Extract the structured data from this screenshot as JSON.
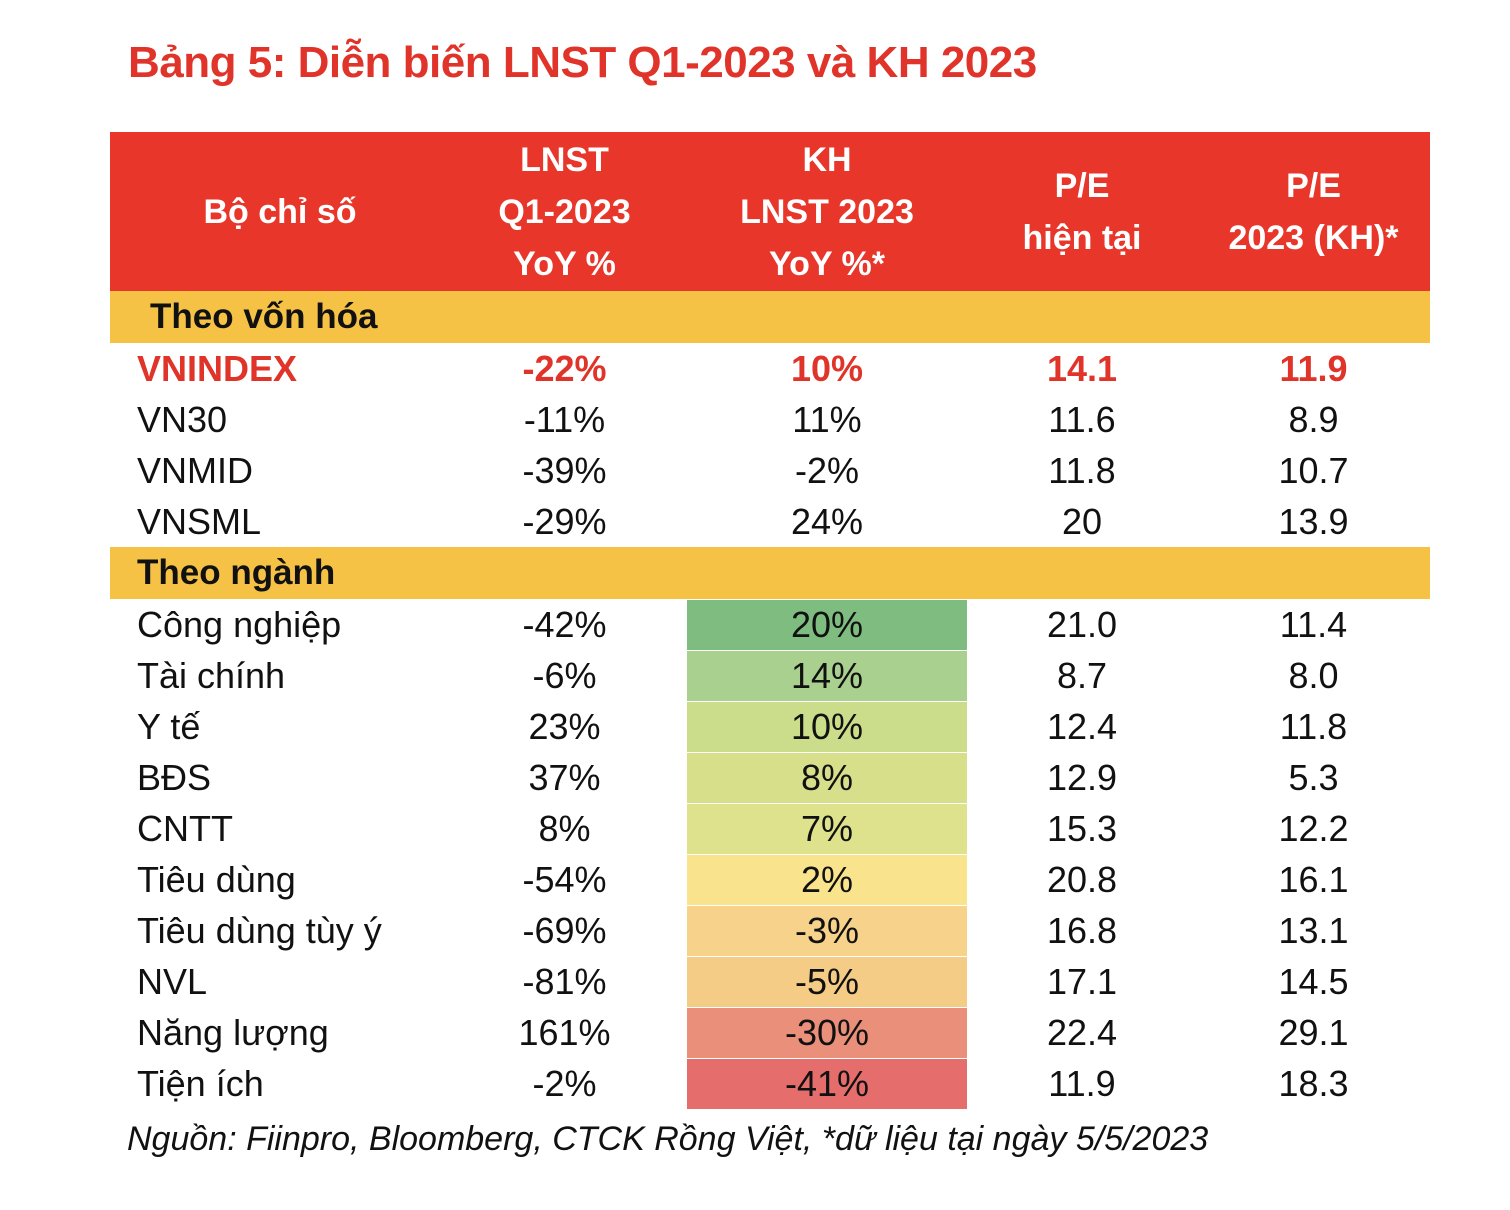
{
  "title": "Bảng 5: Diễn biến LNST Q1-2023 và KH 2023",
  "headers": [
    "Bộ chỉ số",
    "LNST\nQ1-2023\nYoY %",
    "KH\nLNST 2023\nYoY %*",
    "P/E\nhiện tại",
    "P/E\n2023 (KH)*"
  ],
  "sections": [
    {
      "label": "Theo vốn hóa",
      "rows": [
        {
          "name": "VNINDEX",
          "q1": "-22%",
          "kh": "10%",
          "pe": "14.1",
          "pe23": "11.9",
          "highlight": true
        },
        {
          "name": "VN30",
          "q1": "-11%",
          "kh": "11%",
          "pe": "11.6",
          "pe23": "8.9"
        },
        {
          "name": "VNMID",
          "q1": "-39%",
          "kh": "-2%",
          "pe": "11.8",
          "pe23": "10.7"
        },
        {
          "name": "VNSML",
          "q1": "-29%",
          "kh": "24%",
          "pe": "20",
          "pe23": "13.9"
        }
      ]
    },
    {
      "label": "Theo ngành",
      "rows": [
        {
          "name": "Công nghiệp",
          "q1": "-42%",
          "kh": "20%",
          "pe": "21.0",
          "pe23": "11.4",
          "heat": "#7fbc7f"
        },
        {
          "name": "Tài chính",
          "q1": "-6%",
          "kh": "14%",
          "pe": "8.7",
          "pe23": "8.0",
          "heat": "#a9d08e"
        },
        {
          "name": "Y tế",
          "q1": "23%",
          "kh": "10%",
          "pe": "12.4",
          "pe23": "11.8",
          "heat": "#cbdc8a"
        },
        {
          "name": "BĐS",
          "q1": "37%",
          "kh": "8%",
          "pe": "12.9",
          "pe23": "5.3",
          "heat": "#d7df8a"
        },
        {
          "name": "CNTT",
          "q1": "8%",
          "kh": "7%",
          "pe": "15.3",
          "pe23": "12.2",
          "heat": "#dfe28d"
        },
        {
          "name": "Tiêu dùng",
          "q1": "-54%",
          "kh": "2%",
          "pe": "20.8",
          "pe23": "16.1",
          "heat": "#f9e48d"
        },
        {
          "name": "Tiêu dùng tùy ý",
          "q1": "-69%",
          "kh": "-3%",
          "pe": "16.8",
          "pe23": "13.1",
          "heat": "#f6d28a"
        },
        {
          "name": "NVL",
          "q1": "-81%",
          "kh": "-5%",
          "pe": "17.1",
          "pe23": "14.5",
          "heat": "#f4cc86"
        },
        {
          "name": "Năng lượng",
          "q1": "161%",
          "kh": "-30%",
          "pe": "22.4",
          "pe23": "29.1",
          "heat": "#e98f7a"
        },
        {
          "name": "Tiện ích",
          "q1": "-2%",
          "kh": "-41%",
          "pe": "11.9",
          "pe23": "18.3",
          "heat": "#e56e6c"
        }
      ]
    }
  ],
  "source": "Nguồn: Fiinpro, Bloomberg, CTCK Rồng Việt, *dữ liệu tại ngày 5/5/2023"
}
